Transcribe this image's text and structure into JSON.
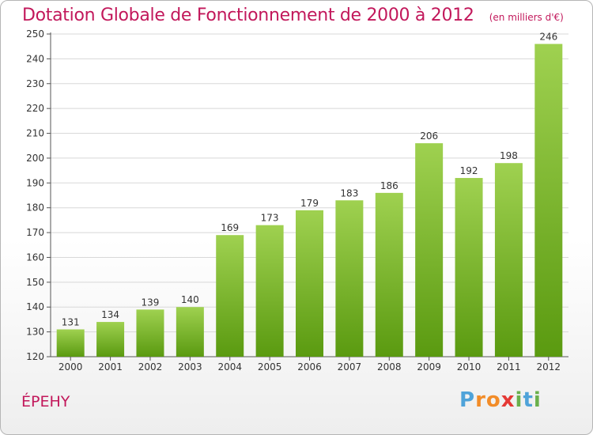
{
  "title": "Dotation Globale de Fonctionnement de 2000 à 2012",
  "subtitle": "(en milliers d'€)",
  "commune": "ÉPEHY",
  "logo": {
    "text": "Proxiti"
  },
  "colors": {
    "title": "#c2185b",
    "bar_top": "#9fd150",
    "bar_bottom": "#5a9a10",
    "grid": "#d8d8d8"
  },
  "chart_data": {
    "type": "bar",
    "categories": [
      "2000",
      "2001",
      "2002",
      "2003",
      "2004",
      "2005",
      "2006",
      "2007",
      "2008",
      "2009",
      "2010",
      "2011",
      "2012"
    ],
    "values": [
      131,
      134,
      139,
      140,
      169,
      173,
      179,
      183,
      186,
      206,
      192,
      198,
      246
    ],
    "ylim": [
      120,
      250
    ],
    "yticks": [
      120,
      130,
      140,
      150,
      160,
      170,
      180,
      190,
      200,
      210,
      220,
      230,
      240,
      250
    ],
    "grid": true,
    "xlabel": "",
    "ylabel": ""
  }
}
